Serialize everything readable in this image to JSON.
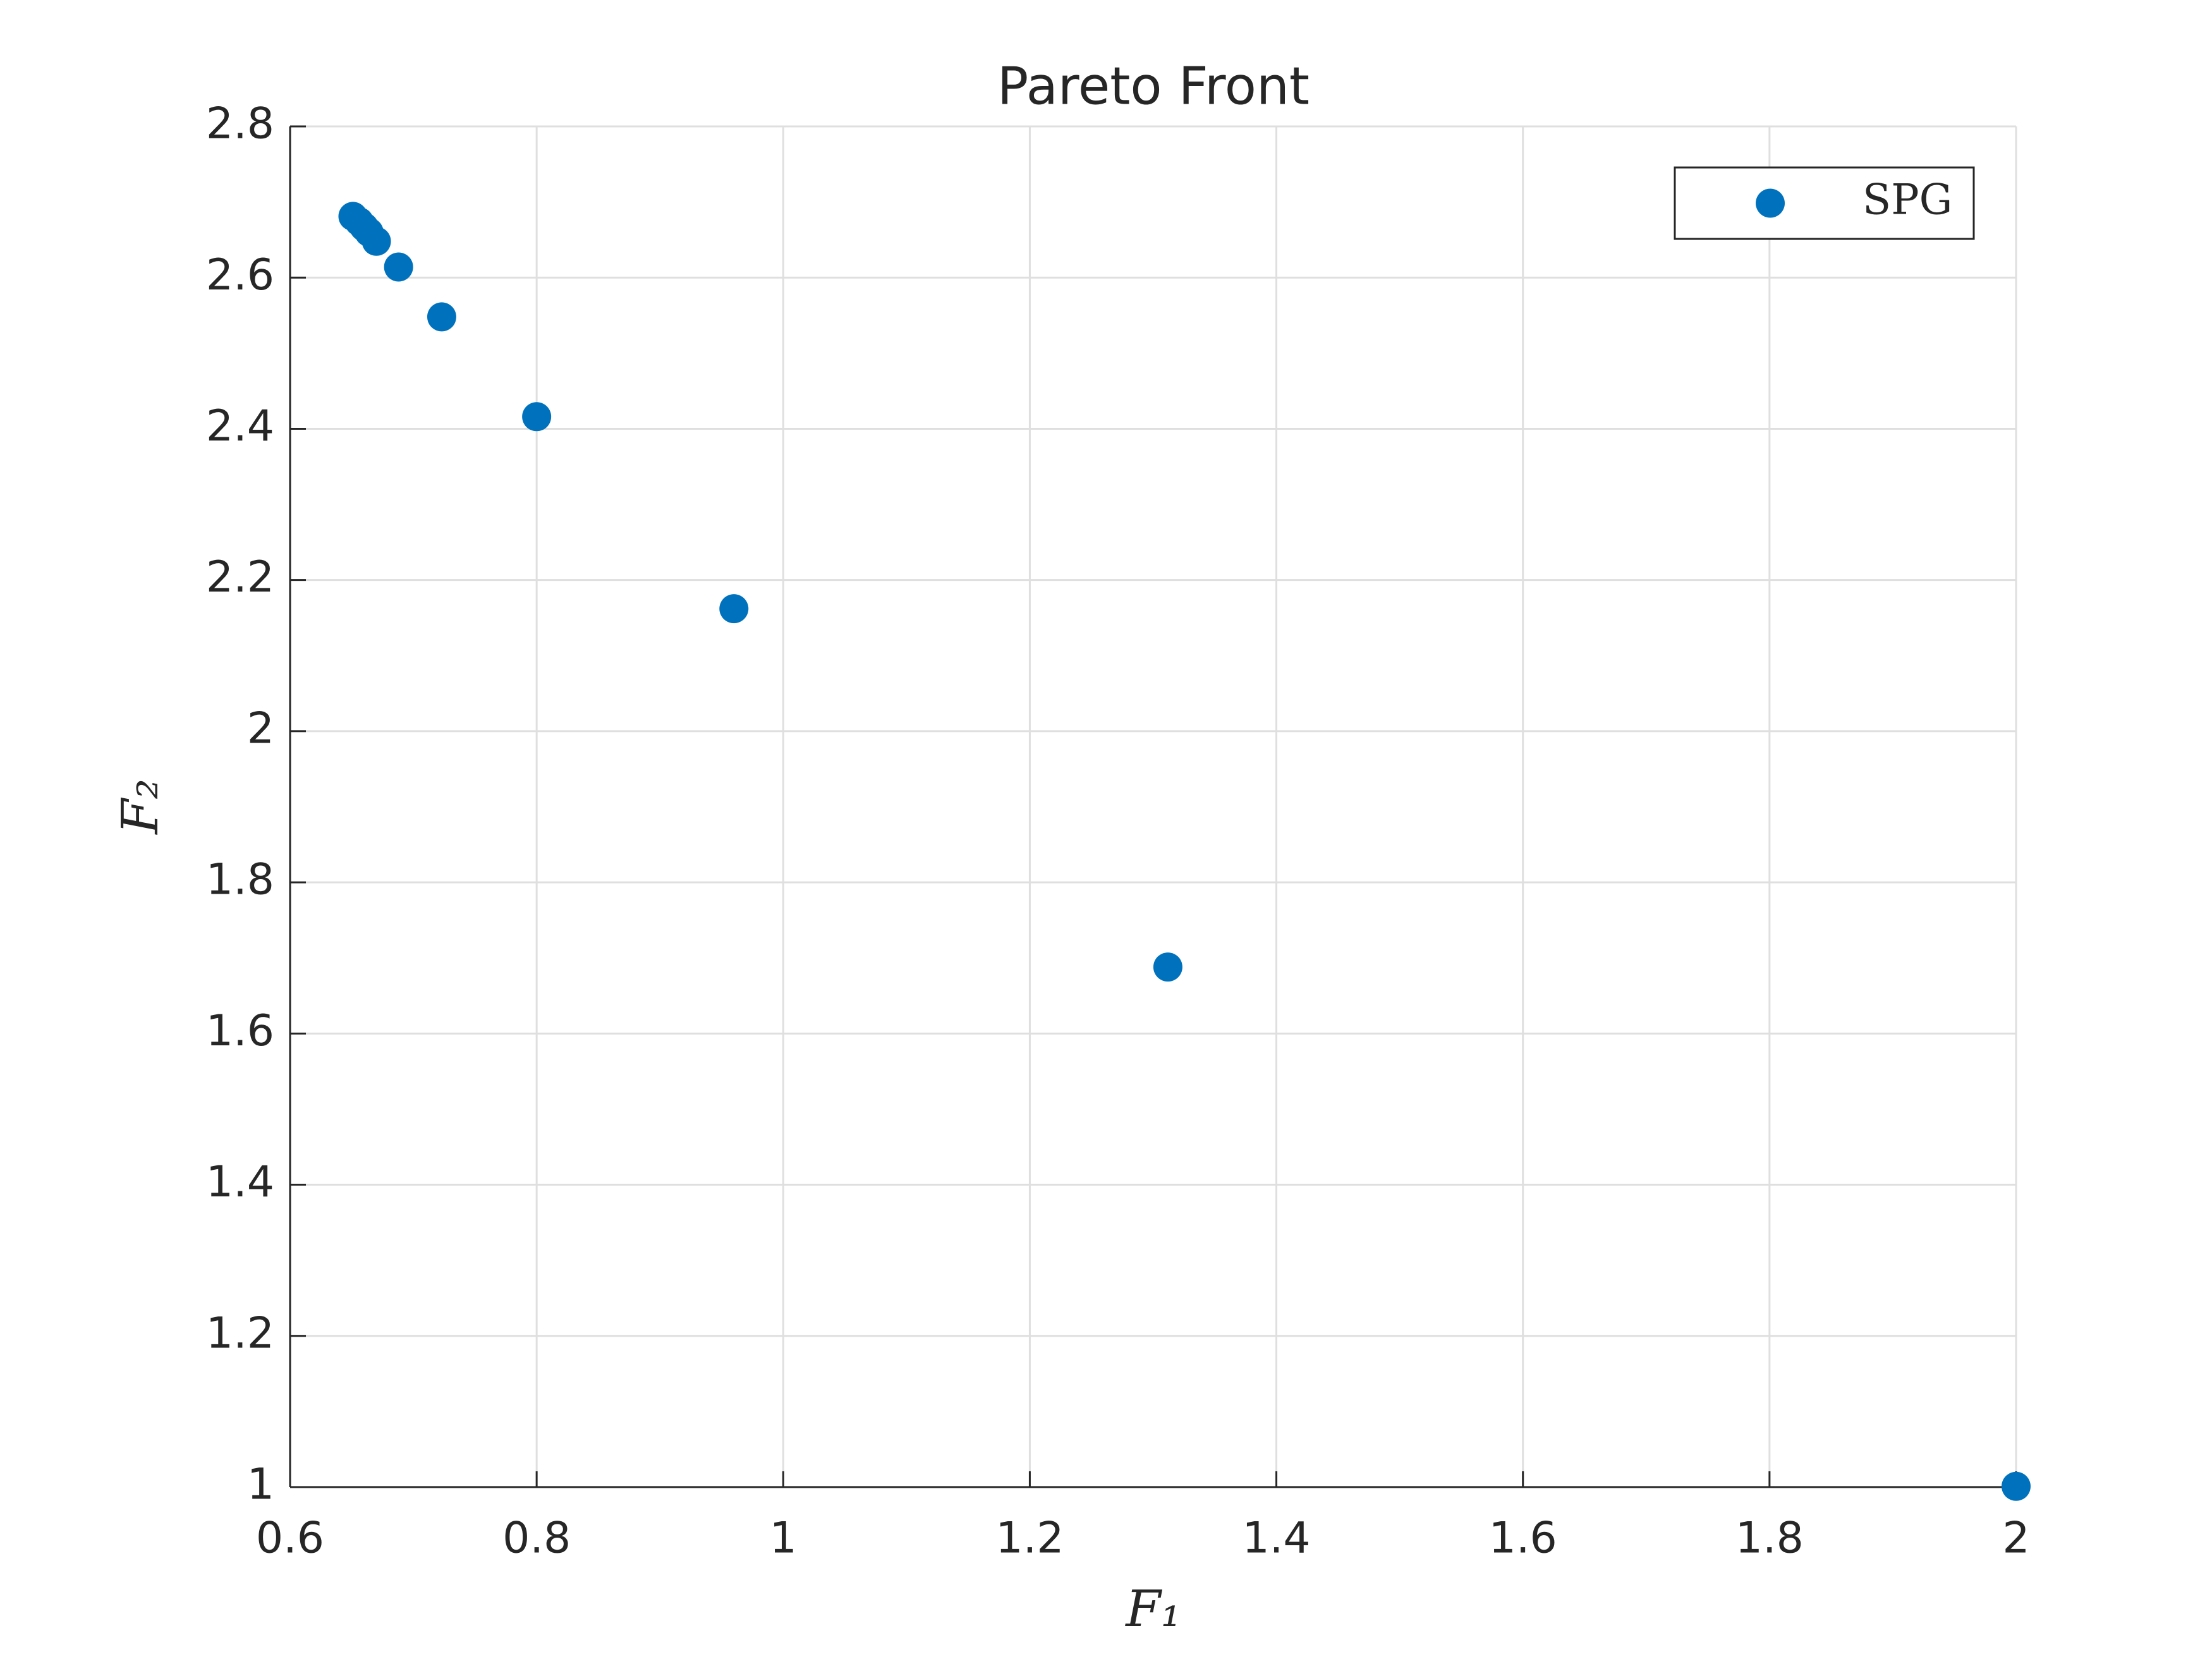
{
  "chart_data": {
    "type": "scatter",
    "title": "Pareto Front",
    "x_label": "F₁",
    "y_label": "F₂",
    "series": [
      {
        "name": "SPG",
        "color": "#0072bd",
        "x": [
          0.651,
          0.656,
          0.66,
          0.664,
          0.67,
          0.688,
          0.723,
          0.8,
          0.96,
          1.312,
          2.0
        ],
        "values": [
          2.681,
          2.674,
          2.667,
          2.66,
          2.648,
          2.614,
          2.548,
          2.416,
          2.162,
          1.688,
          1.001
        ]
      }
    ],
    "xlim": [
      0.6,
      2
    ],
    "xticks": [
      0.6,
      0.8,
      1,
      1.2,
      1.4,
      1.6,
      1.8,
      2
    ],
    "ylim": [
      1,
      2.8
    ],
    "yticks": [
      1,
      1.2,
      1.4,
      1.6,
      1.8,
      2,
      2.2,
      2.4,
      2.6,
      2.8
    ],
    "grid": true,
    "legend_position": "top-right"
  }
}
